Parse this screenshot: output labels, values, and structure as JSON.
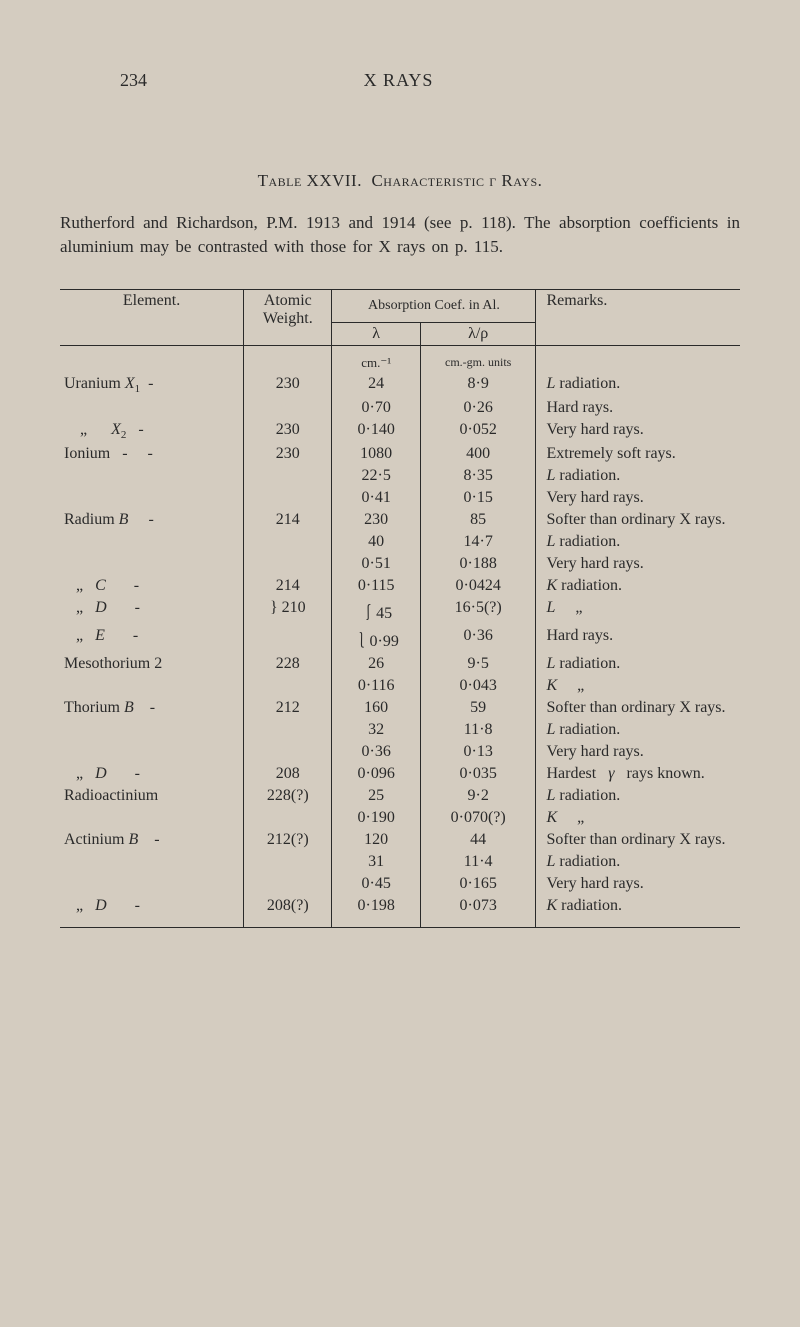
{
  "page_number": "234",
  "page_heading": "X RAYS",
  "table_number": "Table XXVII.",
  "table_caption": "Characteristic γ Rays.",
  "intro": "Rutherford and Richardson, P.M. 1913 and 1914 (see p. 118). The absorption coefficients in aluminium may be contrasted with those for X rays on p. 115.",
  "headers": {
    "element": "Element.",
    "weight": "Atomic Weight.",
    "absorption": "Absorption Coef. in Al.",
    "lambda": "λ",
    "lambda_rho": "λ/ρ",
    "remarks": "Remarks."
  },
  "units": {
    "lambda": "cm.⁻¹",
    "lambda_rho": "cm.-gm. units"
  },
  "rows": [
    {
      "el": "Uranium X₁  -",
      "w": "230",
      "l": "24",
      "lp": "8·9",
      "r": "L radiation."
    },
    {
      "el": "",
      "w": "",
      "l": "0·70",
      "lp": "0·26",
      "r": "Hard rays."
    },
    {
      "el": "    „      X₂   -",
      "w": "230",
      "l": "0·140",
      "lp": "0·052",
      "r": "Very hard rays."
    },
    {
      "el": "Ionium   -     -",
      "w": "230",
      "l": "1080",
      "lp": "400",
      "r": "Extremely soft rays."
    },
    {
      "el": "",
      "w": "",
      "l": "22·5",
      "lp": "8·35",
      "r": "L radiation."
    },
    {
      "el": "",
      "w": "",
      "l": "0·41",
      "lp": "0·15",
      "r": "Very hard rays."
    },
    {
      "el": "Radium B     -",
      "w": "214",
      "l": "230",
      "lp": "85",
      "r": "Softer than ordinary X rays."
    },
    {
      "el": "",
      "w": "",
      "l": "40",
      "lp": "14·7",
      "r": "L radiation."
    },
    {
      "el": "",
      "w": "",
      "l": "0·51",
      "lp": "0·188",
      "r": "Very hard rays."
    },
    {
      "el": "   „   C       -",
      "w": "214",
      "l": "0·115",
      "lp": "0·0424",
      "r": "K radiation."
    },
    {
      "el": "   „   D       -",
      "w": "} 210",
      "l": "⎰45",
      "lp": "16·5(?)",
      "r": "L     „"
    },
    {
      "el": "   „   E       -",
      "w": "",
      "l": "⎱0·99",
      "lp": "0·36",
      "r": "Hard rays."
    },
    {
      "el": "Mesothorium 2",
      "w": "228",
      "l": "26",
      "lp": "9·5",
      "r": "L radiation."
    },
    {
      "el": "",
      "w": "",
      "l": "0·116",
      "lp": "0·043",
      "r": "K     „"
    },
    {
      "el": "Thorium B    -",
      "w": "212",
      "l": "160",
      "lp": "59",
      "r": "Softer than ordinary X rays."
    },
    {
      "el": "",
      "w": "",
      "l": "32",
      "lp": "11·8",
      "r": "L radiation."
    },
    {
      "el": "",
      "w": "",
      "l": "0·36",
      "lp": "0·13",
      "r": "Very hard rays."
    },
    {
      "el": "   „   D       -",
      "w": "208",
      "l": "0·096",
      "lp": "0·035",
      "r": "Hardest   γ   rays known."
    },
    {
      "el": "Radioactinium",
      "w": "228(?)",
      "l": "25",
      "lp": "9·2",
      "r": "L radiation."
    },
    {
      "el": "",
      "w": "",
      "l": "0·190",
      "lp": "0·070(?)",
      "r": "K     „"
    },
    {
      "el": "Actinium B    -",
      "w": "212(?)",
      "l": "120",
      "lp": "44",
      "r": "Softer than ordinary X rays."
    },
    {
      "el": "",
      "w": "",
      "l": "31",
      "lp": "11·4",
      "r": "L radiation."
    },
    {
      "el": "",
      "w": "",
      "l": "0·45",
      "lp": "0·165",
      "r": "Very hard rays."
    },
    {
      "el": "   „   D       -",
      "w": "208(?)",
      "l": "0·198",
      "lp": "0·073",
      "r": "K radiation."
    }
  ]
}
